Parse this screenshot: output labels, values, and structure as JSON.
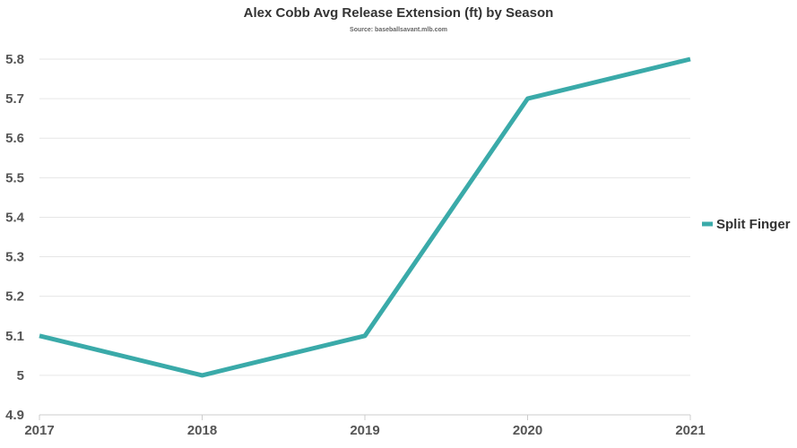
{
  "chart_data": {
    "type": "line",
    "title": "Alex Cobb Avg Release Extension (ft) by Season",
    "subtitle": "Source: baseballsavant.mlb.com",
    "xlabel": "",
    "ylabel": "",
    "categories": [
      "2017",
      "2018",
      "2019",
      "2020",
      "2021"
    ],
    "series": [
      {
        "name": "Split Finger",
        "color": "#3aaaa9",
        "values": [
          5.1,
          5.0,
          5.1,
          5.7,
          5.8
        ]
      }
    ],
    "ylim": [
      4.9,
      5.8
    ],
    "yticks": [
      "4.9",
      "5",
      "5.1",
      "5.2",
      "5.3",
      "5.4",
      "5.5",
      "5.6",
      "5.7",
      "5.8"
    ],
    "grid": true,
    "legend": "right"
  }
}
